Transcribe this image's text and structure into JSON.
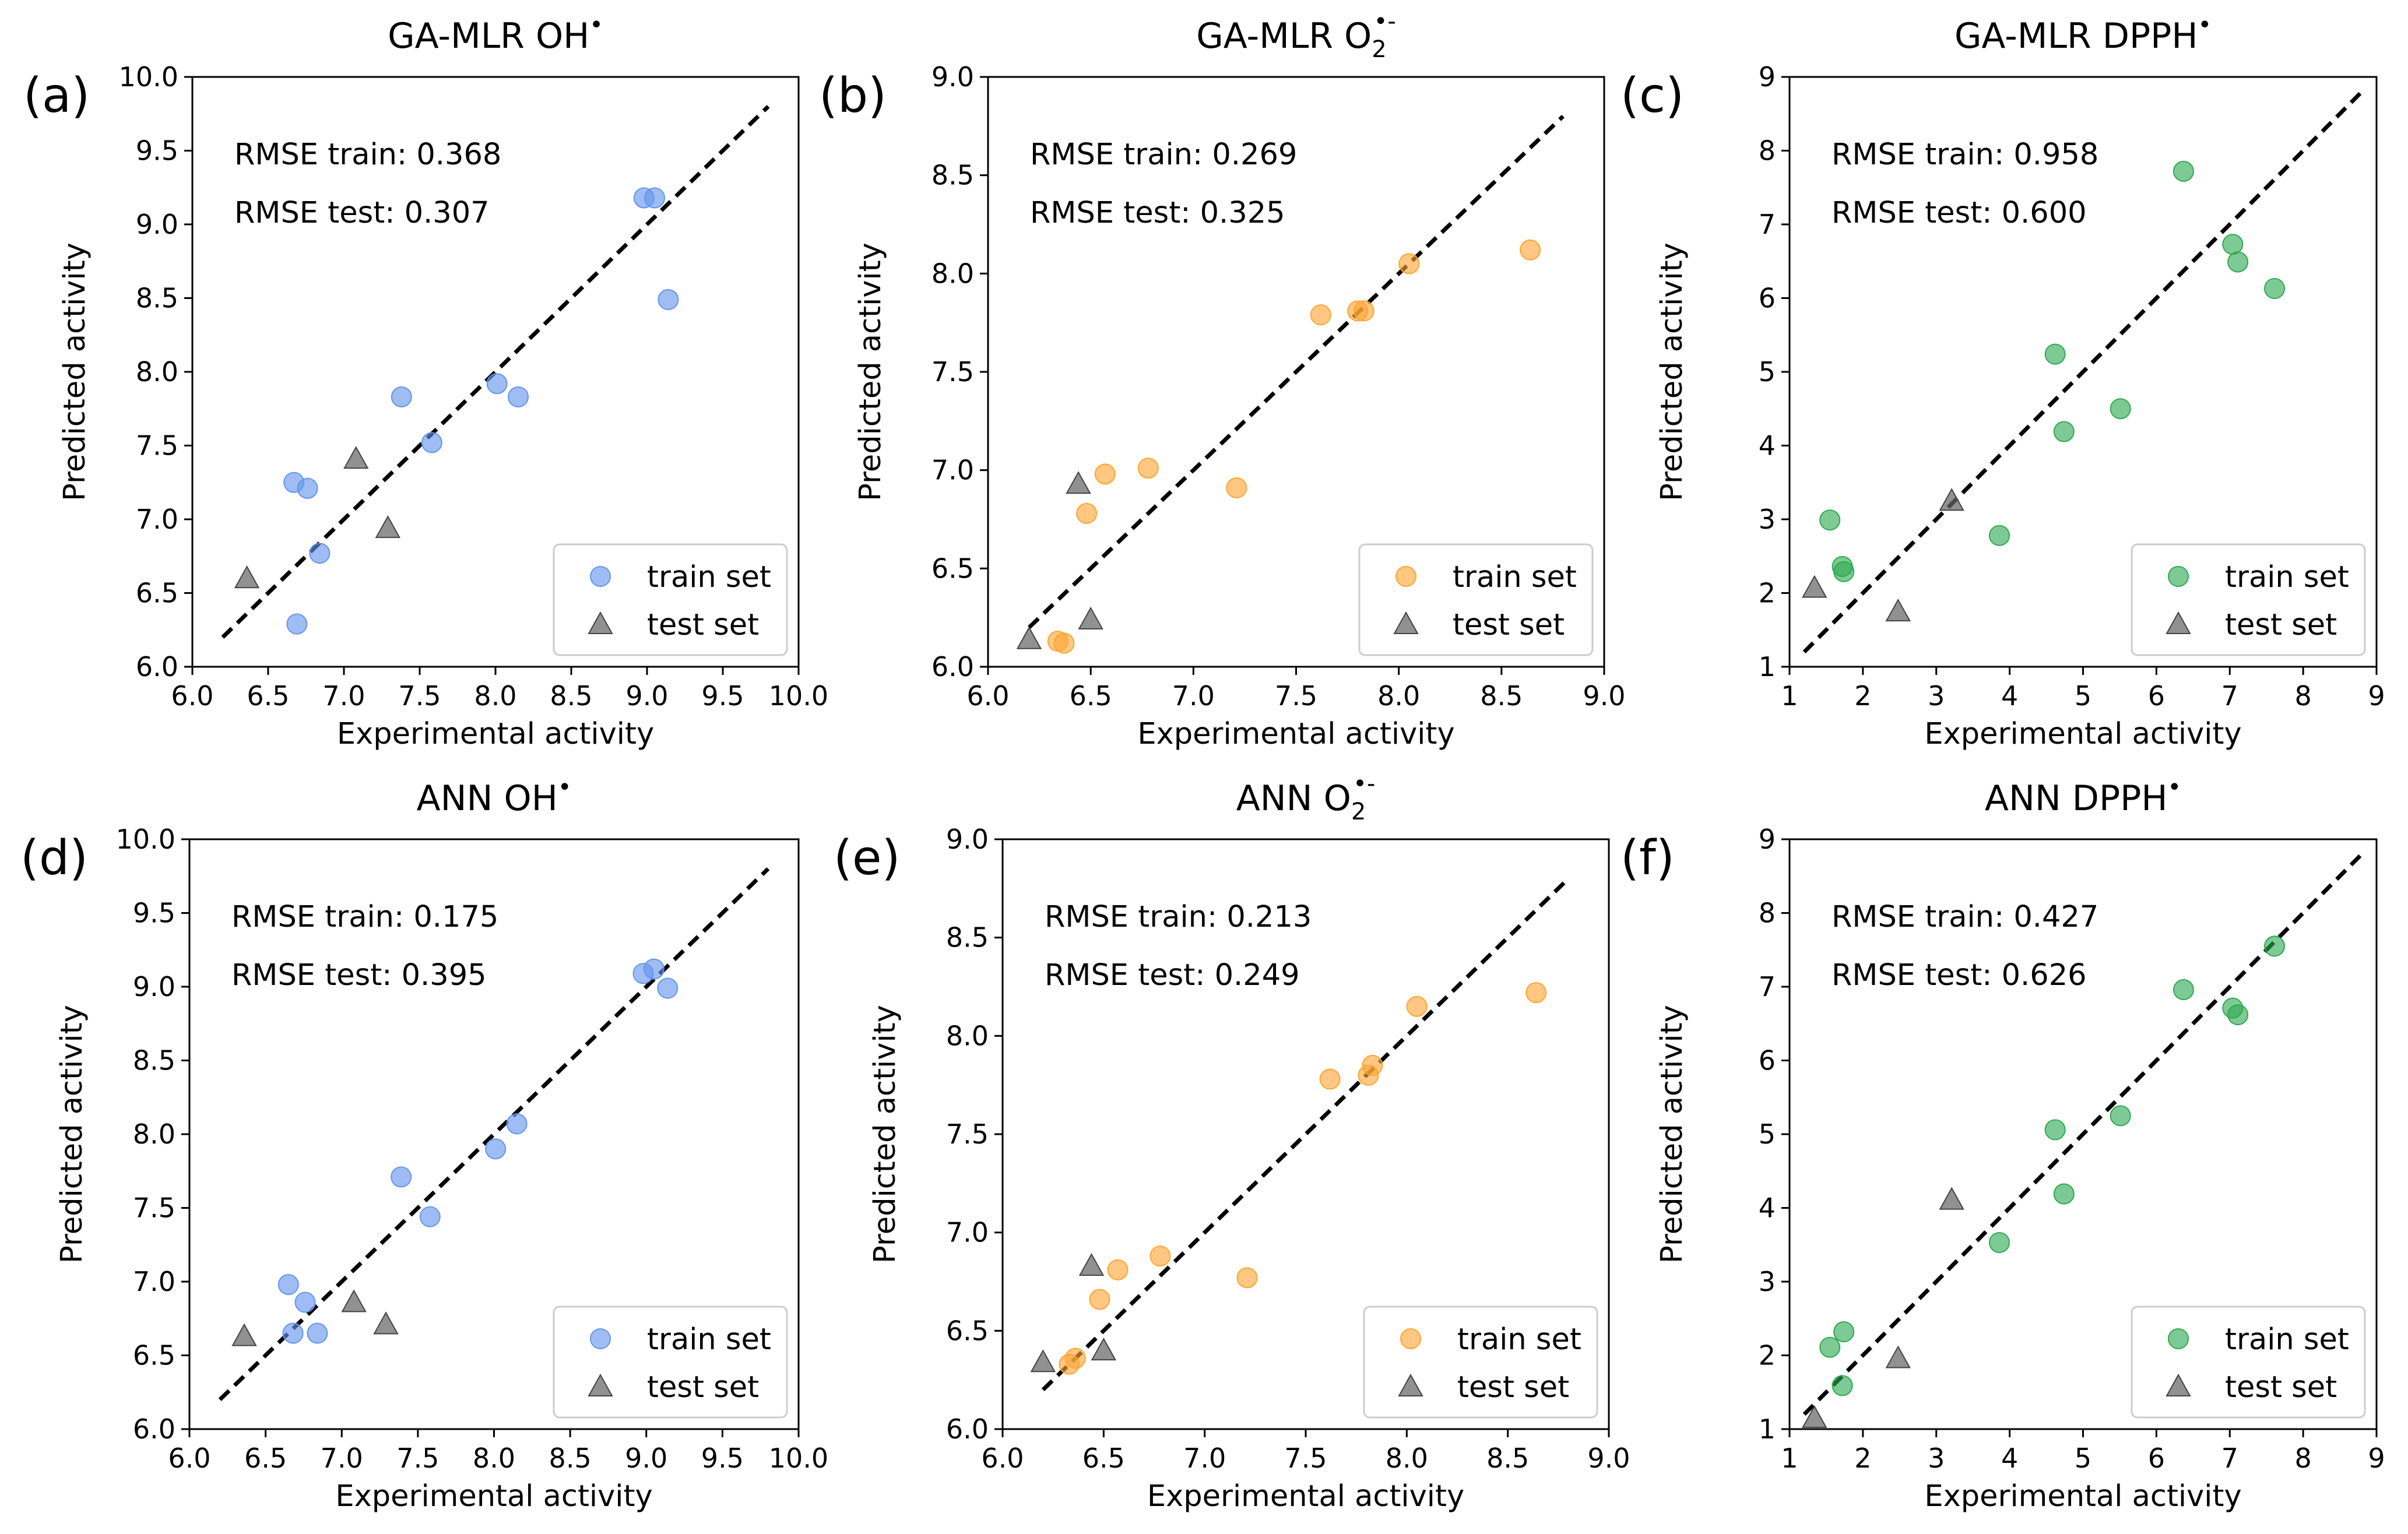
{
  "chart_data": [
    {
      "type": "scatter",
      "panel": "(a)",
      "title": "GA-MLR OH",
      "title_sup": "•",
      "title_sub": "",
      "xlabel": "Experimental activity",
      "ylabel": "Predicted activity",
      "xlim": [
        6.0,
        10.0
      ],
      "ylim": [
        6.0,
        10.0
      ],
      "xticks": [
        6.0,
        6.5,
        7.0,
        7.5,
        8.0,
        8.5,
        9.0,
        9.5,
        10.0
      ],
      "yticks": [
        6.0,
        6.5,
        7.0,
        7.5,
        8.0,
        8.5,
        9.0,
        9.5,
        10.0
      ],
      "tick_format": "0.0",
      "diagonal": [
        6.2,
        9.8
      ],
      "annotations": [
        "RMSE train: 0.368",
        "RMSE test: 0.307"
      ],
      "series": [
        {
          "name": "train set",
          "marker": "circle",
          "color": "#6495ED",
          "points": [
            [
              6.67,
              7.25
            ],
            [
              6.76,
              7.21
            ],
            [
              6.84,
              6.77
            ],
            [
              6.69,
              6.29
            ],
            [
              7.38,
              7.83
            ],
            [
              7.58,
              7.52
            ],
            [
              8.01,
              7.92
            ],
            [
              8.15,
              7.83
            ],
            [
              8.98,
              9.18
            ],
            [
              9.05,
              9.18
            ],
            [
              9.14,
              8.49
            ]
          ]
        },
        {
          "name": "test set",
          "marker": "triangle",
          "color": "#666666",
          "points": [
            [
              6.36,
              6.6
            ],
            [
              7.08,
              7.41
            ],
            [
              7.29,
              6.94
            ]
          ]
        }
      ]
    },
    {
      "type": "scatter",
      "panel": "(b)",
      "title": "GA-MLR O",
      "title_sup": "•-",
      "title_sub": "2",
      "xlabel": "Experimental activity",
      "ylabel": "Predicted activity",
      "xlim": [
        6.0,
        9.0
      ],
      "ylim": [
        6.0,
        9.0
      ],
      "xticks": [
        6.0,
        6.5,
        7.0,
        7.5,
        8.0,
        8.5,
        9.0
      ],
      "yticks": [
        6.0,
        6.5,
        7.0,
        7.5,
        8.0,
        8.5,
        9.0
      ],
      "tick_format": "0.0",
      "diagonal": [
        6.2,
        8.8
      ],
      "annotations": [
        "RMSE train: 0.269",
        "RMSE test: 0.325"
      ],
      "series": [
        {
          "name": "train set",
          "marker": "circle",
          "color": "#FFA533",
          "points": [
            [
              6.34,
              6.13
            ],
            [
              6.37,
              6.12
            ],
            [
              6.57,
              6.98
            ],
            [
              6.48,
              6.78
            ],
            [
              6.78,
              7.01
            ],
            [
              7.21,
              6.91
            ],
            [
              7.62,
              7.79
            ],
            [
              7.8,
              7.81
            ],
            [
              7.83,
              7.81
            ],
            [
              8.05,
              8.05
            ],
            [
              8.64,
              8.12
            ]
          ]
        },
        {
          "name": "test set",
          "marker": "triangle",
          "color": "#666666",
          "points": [
            [
              6.2,
              6.14
            ],
            [
              6.44,
              6.93
            ],
            [
              6.5,
              6.24
            ]
          ]
        }
      ]
    },
    {
      "type": "scatter",
      "panel": "(c)",
      "title": "GA-MLR DPPH",
      "title_sup": "•",
      "title_sub": "",
      "xlabel": "Experimental activity",
      "ylabel": "Predicted activity",
      "xlim": [
        1,
        9
      ],
      "ylim": [
        1,
        9
      ],
      "xticks": [
        1,
        2,
        3,
        4,
        5,
        6,
        7,
        8,
        9
      ],
      "yticks": [
        1,
        2,
        3,
        4,
        5,
        6,
        7,
        8,
        9
      ],
      "tick_format": "0",
      "diagonal": [
        1.2,
        8.8
      ],
      "annotations": [
        "RMSE train: 0.958",
        "RMSE test: 0.600"
      ],
      "series": [
        {
          "name": "train set",
          "marker": "circle",
          "color": "#2EAA52",
          "points": [
            [
              1.55,
              2.99
            ],
            [
              1.72,
              2.36
            ],
            [
              1.74,
              2.29
            ],
            [
              3.86,
              2.78
            ],
            [
              4.62,
              5.24
            ],
            [
              4.74,
              4.19
            ],
            [
              5.51,
              4.5
            ],
            [
              6.37,
              7.72
            ],
            [
              7.04,
              6.73
            ],
            [
              7.11,
              6.49
            ],
            [
              7.61,
              6.13
            ]
          ]
        },
        {
          "name": "test set",
          "marker": "triangle",
          "color": "#666666",
          "points": [
            [
              1.34,
              2.07
            ],
            [
              2.48,
              1.75
            ],
            [
              3.21,
              3.25
            ]
          ]
        }
      ]
    },
    {
      "type": "scatter",
      "panel": "(d)",
      "title": "ANN OH",
      "title_sup": "•",
      "title_sub": "",
      "xlabel": "Experimental activity",
      "ylabel": "Predicted activity",
      "xlim": [
        6.0,
        10.0
      ],
      "ylim": [
        6.0,
        10.0
      ],
      "xticks": [
        6.0,
        6.5,
        7.0,
        7.5,
        8.0,
        8.5,
        9.0,
        9.5,
        10.0
      ],
      "yticks": [
        6.0,
        6.5,
        7.0,
        7.5,
        8.0,
        8.5,
        9.0,
        9.5,
        10.0
      ],
      "tick_format": "0.0",
      "diagonal": [
        6.2,
        9.8
      ],
      "annotations": [
        "RMSE train: 0.175",
        "RMSE test: 0.395"
      ],
      "series": [
        {
          "name": "train set",
          "marker": "circle",
          "color": "#6495ED",
          "points": [
            [
              6.65,
              6.98
            ],
            [
              6.76,
              6.86
            ],
            [
              6.68,
              6.65
            ],
            [
              6.84,
              6.65
            ],
            [
              7.39,
              7.71
            ],
            [
              7.58,
              7.44
            ],
            [
              8.01,
              7.9
            ],
            [
              8.15,
              8.07
            ],
            [
              8.98,
              9.09
            ],
            [
              9.05,
              9.12
            ],
            [
              9.14,
              8.99
            ]
          ]
        },
        {
          "name": "test set",
          "marker": "triangle",
          "color": "#666666",
          "points": [
            [
              6.36,
              6.63
            ],
            [
              7.08,
              6.86
            ],
            [
              7.29,
              6.71
            ]
          ]
        }
      ]
    },
    {
      "type": "scatter",
      "panel": "(e)",
      "title": "ANN O",
      "title_sup": "•-",
      "title_sub": "2",
      "xlabel": "Experimental activity",
      "ylabel": "Predicted activity",
      "xlim": [
        6.0,
        9.0
      ],
      "ylim": [
        6.0,
        9.0
      ],
      "xticks": [
        6.0,
        6.5,
        7.0,
        7.5,
        8.0,
        8.5,
        9.0
      ],
      "yticks": [
        6.0,
        6.5,
        7.0,
        7.5,
        8.0,
        8.5,
        9.0
      ],
      "tick_format": "0.0",
      "diagonal": [
        6.2,
        8.8
      ],
      "annotations": [
        "RMSE train: 0.213",
        "RMSE test: 0.249"
      ],
      "series": [
        {
          "name": "train set",
          "marker": "circle",
          "color": "#FFA533",
          "points": [
            [
              6.33,
              6.33
            ],
            [
              6.36,
              6.36
            ],
            [
              6.57,
              6.81
            ],
            [
              6.48,
              6.66
            ],
            [
              6.78,
              6.88
            ],
            [
              7.21,
              6.77
            ],
            [
              7.62,
              7.78
            ],
            [
              7.81,
              7.8
            ],
            [
              7.83,
              7.85
            ],
            [
              8.05,
              8.15
            ],
            [
              8.64,
              8.22
            ]
          ]
        },
        {
          "name": "test set",
          "marker": "triangle",
          "color": "#666666",
          "points": [
            [
              6.2,
              6.34
            ],
            [
              6.44,
              6.83
            ],
            [
              6.5,
              6.4
            ]
          ]
        }
      ]
    },
    {
      "type": "scatter",
      "panel": "(f)",
      "title": "ANN DPPH",
      "title_sup": "•",
      "title_sub": "",
      "xlabel": "Experimental activity",
      "ylabel": "Predicted activity",
      "xlim": [
        1,
        9
      ],
      "ylim": [
        1,
        9
      ],
      "xticks": [
        1,
        2,
        3,
        4,
        5,
        6,
        7,
        8,
        9
      ],
      "yticks": [
        1,
        2,
        3,
        4,
        5,
        6,
        7,
        8,
        9
      ],
      "tick_format": "0",
      "diagonal": [
        1.2,
        8.8
      ],
      "annotations": [
        "RMSE train: 0.427",
        "RMSE test: 0.626"
      ],
      "series": [
        {
          "name": "train set",
          "marker": "circle",
          "color": "#2EAA52",
          "points": [
            [
              1.55,
              2.11
            ],
            [
              1.74,
              2.32
            ],
            [
              1.72,
              1.59
            ],
            [
              3.86,
              3.53
            ],
            [
              4.62,
              5.06
            ],
            [
              4.74,
              4.19
            ],
            [
              5.51,
              5.25
            ],
            [
              6.37,
              6.96
            ],
            [
              7.04,
              6.71
            ],
            [
              7.11,
              6.62
            ],
            [
              7.61,
              7.55
            ]
          ]
        },
        {
          "name": "test set",
          "marker": "triangle",
          "color": "#666666",
          "points": [
            [
              1.34,
              1.15
            ],
            [
              2.48,
              1.96
            ],
            [
              3.21,
              4.11
            ]
          ]
        }
      ]
    }
  ]
}
